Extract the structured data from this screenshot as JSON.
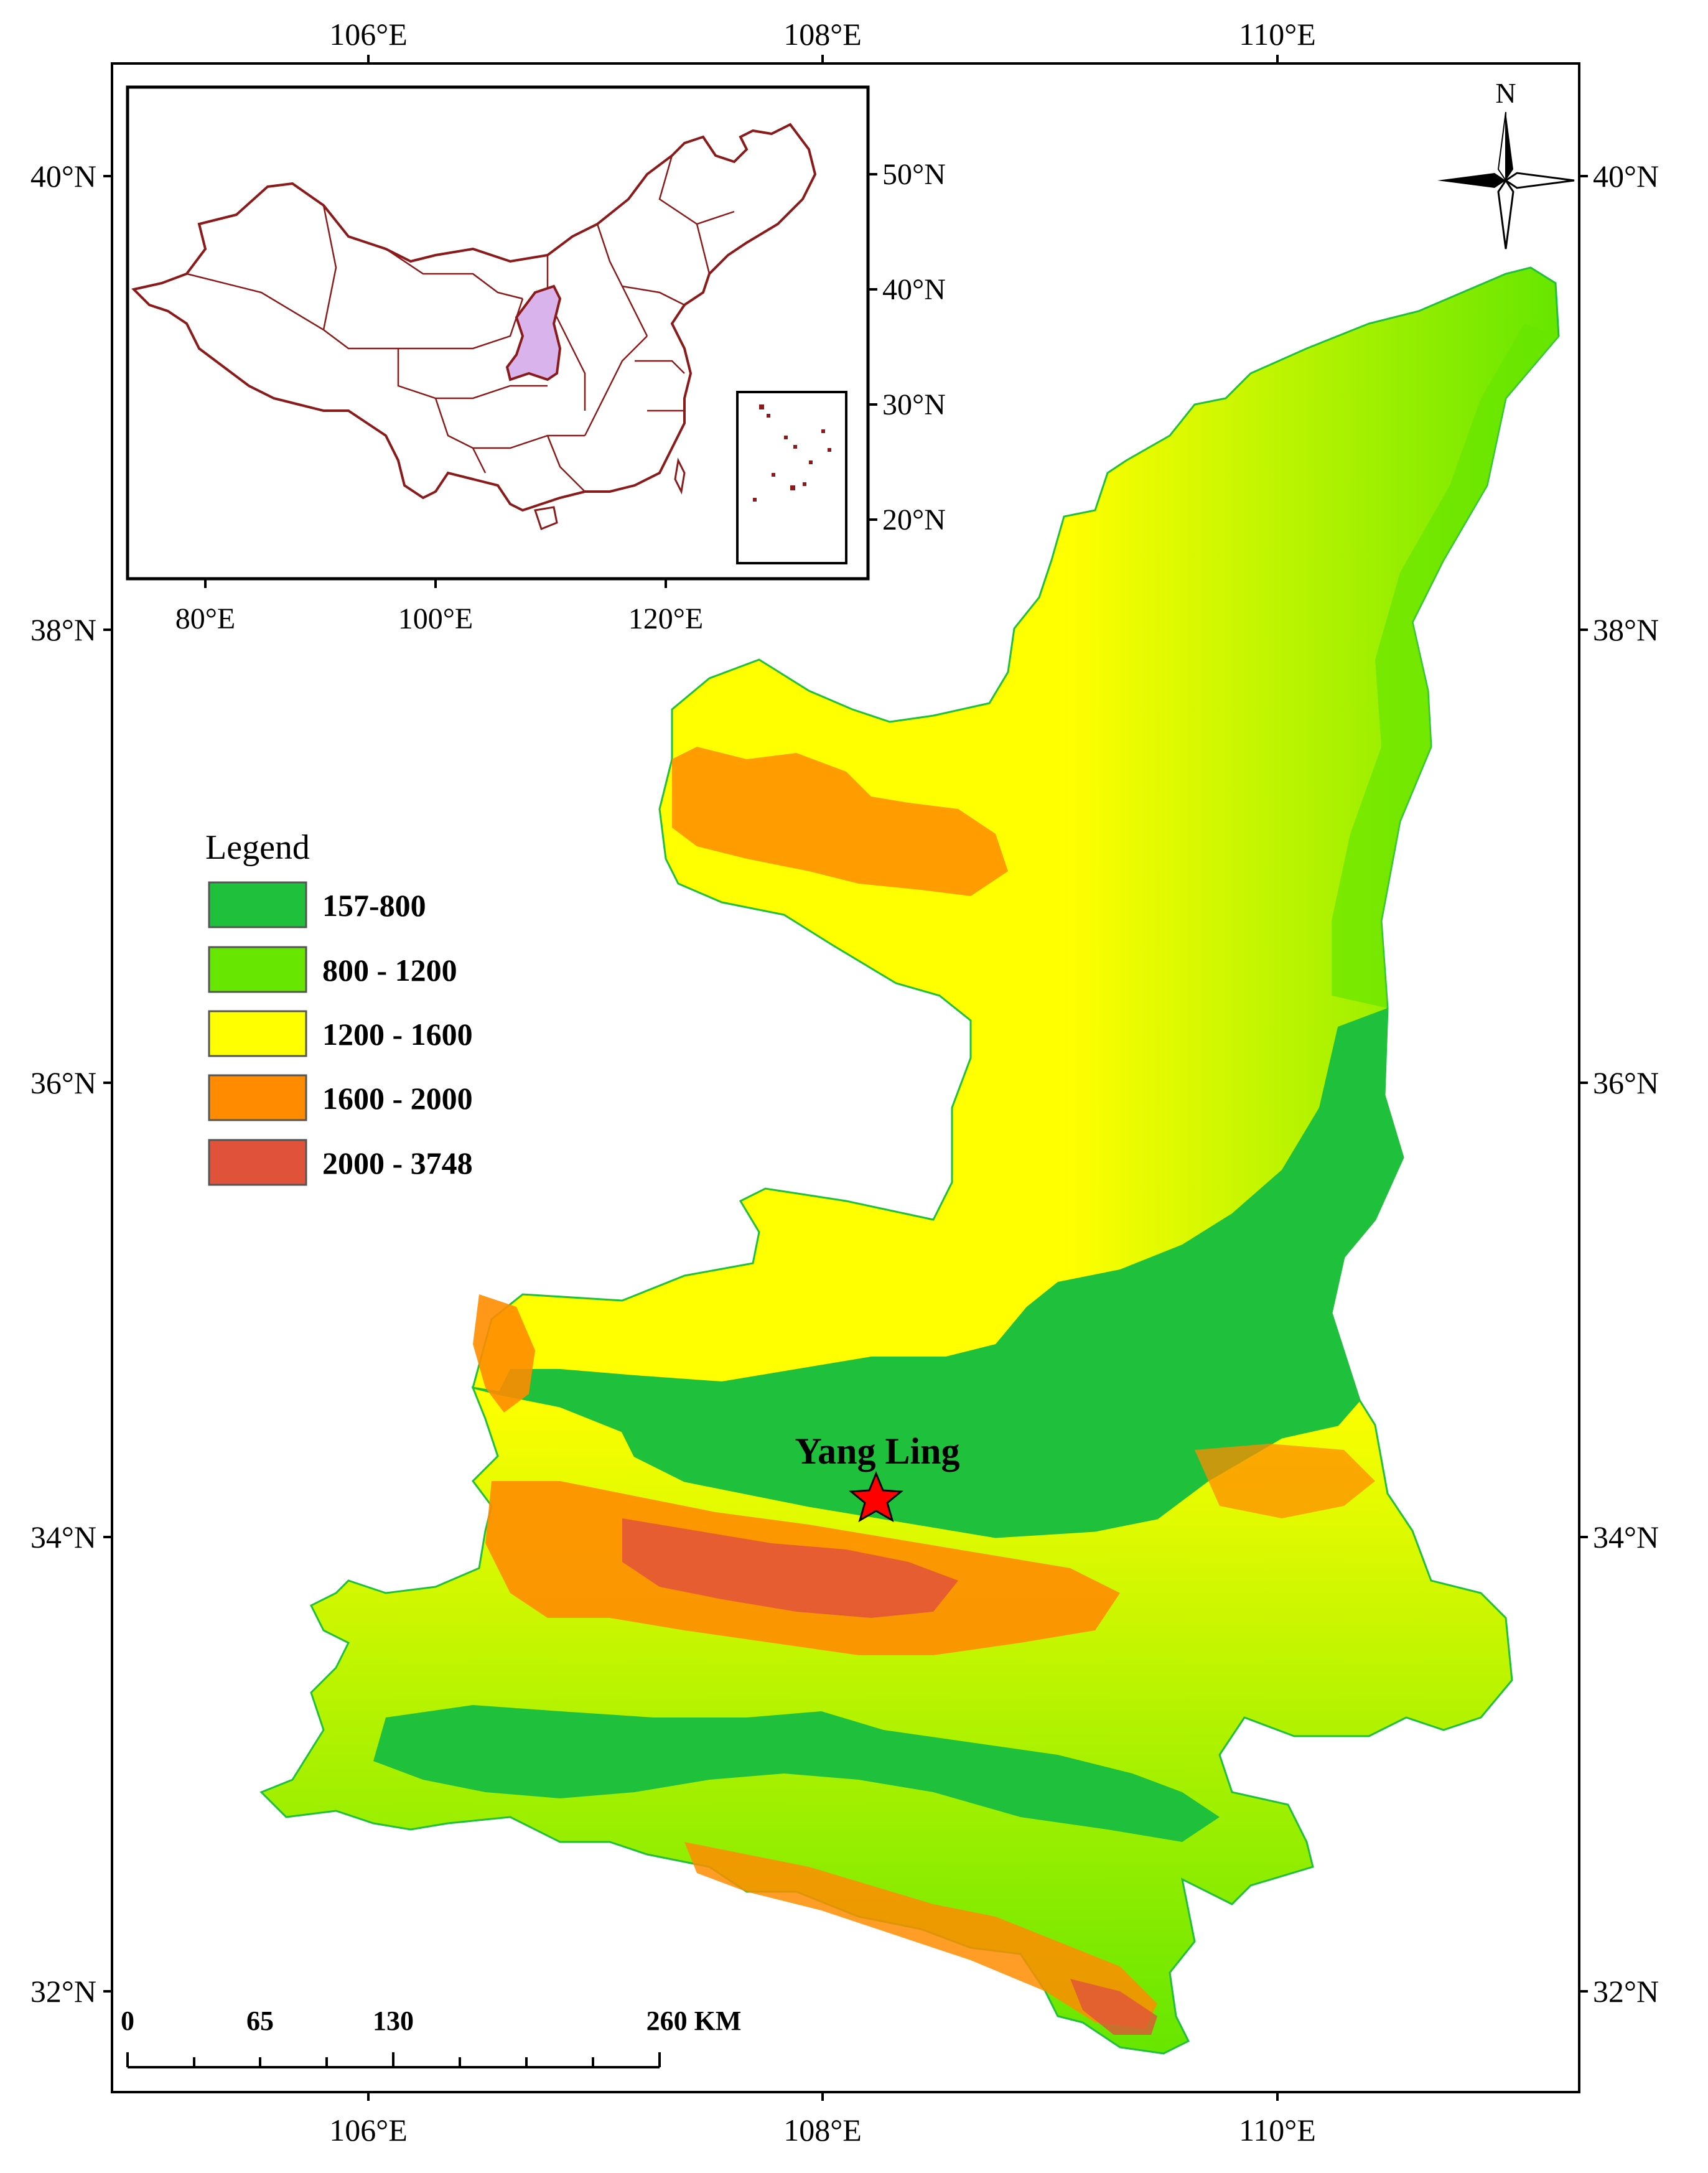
{
  "top_axis": [
    "106°E",
    "108°E",
    "110°E"
  ],
  "bottom_axis": [
    "106°E",
    "108°E",
    "110°E"
  ],
  "left_axis": [
    "40°N",
    "38°N",
    "36°N",
    "34°N",
    "32°N"
  ],
  "right_axis": [
    "40°N",
    "38°N",
    "36°N",
    "34°N",
    "32°N"
  ],
  "inset": {
    "lat_labels": [
      "50°N",
      "40°N",
      "30°N",
      "20°N"
    ],
    "lon_labels": [
      "80°E",
      "100°E",
      "120°E"
    ],
    "border_color": "#8b1a1a",
    "highlight_color": "#d9b3ec"
  },
  "north_arrow": {
    "label": "N"
  },
  "legend": {
    "title": "Legend",
    "items": [
      {
        "label": "157-800",
        "color": "#1ec03c"
      },
      {
        "label": "800 - 1200",
        "color": "#66e600"
      },
      {
        "label": "1200 - 1600",
        "color": "#ffff00"
      },
      {
        "label": "1600 - 2000",
        "color": "#ff8c00"
      },
      {
        "label": "2000 - 3748",
        "color": "#e0523a"
      }
    ]
  },
  "site": {
    "label": "Yang Ling",
    "marker": "star",
    "color": "#ff0000"
  },
  "scale_bar": {
    "labels": [
      "0",
      "65",
      "130",
      "260 KM"
    ]
  }
}
